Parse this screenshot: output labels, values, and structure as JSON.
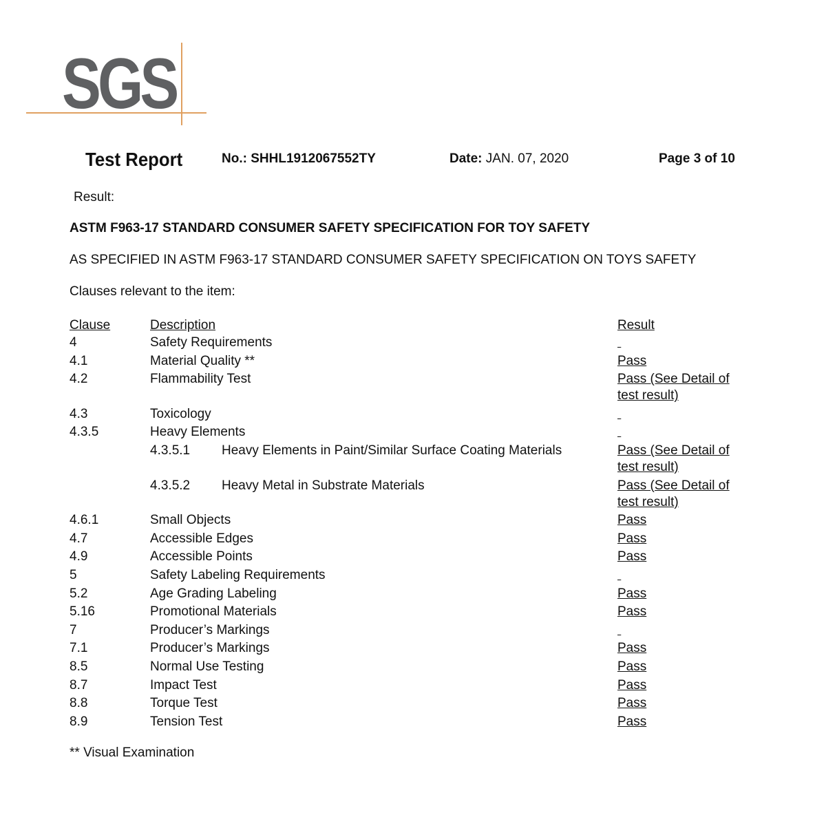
{
  "logo": {
    "text": "SGS",
    "brand_gray": "#5f6062",
    "line_color": "#e0a060"
  },
  "header": {
    "title": "Test Report",
    "no_label": "No.:",
    "no_value": "SHHL1912067552TY",
    "date_label": "Date:",
    "date_value": "JAN. 07, 2020",
    "page": "Page 3 of 10"
  },
  "result_label": "Result:",
  "standard_title": "ASTM F963-17 STANDARD CONSUMER SAFETY SPECIFICATION FOR TOY SAFETY",
  "spec_line": "AS SPECIFIED IN ASTM F963-17 STANDARD CONSUMER SAFETY SPECIFICATION ON TOYS SAFETY",
  "clauses_intro": "Clauses relevant to the item:",
  "table": {
    "headers": {
      "clause": "Clause",
      "description": "Description",
      "result": "Result"
    },
    "rows": [
      {
        "clause": "4",
        "sub": "",
        "description": "Safety Requirements",
        "result": ""
      },
      {
        "clause": "4.1",
        "sub": "",
        "description": "Material Quality **",
        "result": "Pass"
      },
      {
        "clause": "4.2",
        "sub": "",
        "description": "Flammability Test",
        "result": "Pass (See Detail of test result)"
      },
      {
        "clause": "4.3",
        "sub": "",
        "description": "Toxicology",
        "result": ""
      },
      {
        "clause": "4.3.5",
        "sub": "",
        "description": "Heavy Elements",
        "result": ""
      },
      {
        "clause": "",
        "sub": "4.3.5.1",
        "description": "Heavy Elements in Paint/Similar Surface Coating Materials",
        "result": "Pass (See Detail of test result)"
      },
      {
        "clause": "",
        "sub": "4.3.5.2",
        "description": "Heavy Metal in Substrate Materials",
        "result": "Pass (See Detail of test result)"
      },
      {
        "clause": "4.6.1",
        "sub": "",
        "description": "Small Objects",
        "result": "Pass"
      },
      {
        "clause": "4.7",
        "sub": "",
        "description": "Accessible Edges",
        "result": "Pass"
      },
      {
        "clause": "4.9",
        "sub": "",
        "description": "Accessible Points",
        "result": "Pass"
      },
      {
        "clause": "5",
        "sub": "",
        "description": "Safety Labeling Requirements",
        "result": ""
      },
      {
        "clause": "5.2",
        "sub": "",
        "description": "Age Grading Labeling",
        "result": "Pass"
      },
      {
        "clause": "5.16",
        "sub": "",
        "description": "Promotional Materials",
        "result": "Pass"
      },
      {
        "clause": "7",
        "sub": "",
        "description": "Producer’s Markings",
        "result": ""
      },
      {
        "clause": "7.1",
        "sub": "",
        "description": "Producer’s Markings",
        "result": "Pass"
      },
      {
        "clause": "8.5",
        "sub": "",
        "description": "Normal Use Testing",
        "result": "Pass"
      },
      {
        "clause": "8.7",
        "sub": "",
        "description": "Impact Test",
        "result": "Pass"
      },
      {
        "clause": "8.8",
        "sub": "",
        "description": "Torque Test",
        "result": "Pass"
      },
      {
        "clause": "8.9",
        "sub": "",
        "description": "Tension Test",
        "result": "Pass"
      }
    ]
  },
  "footnote": "** Visual Examination"
}
